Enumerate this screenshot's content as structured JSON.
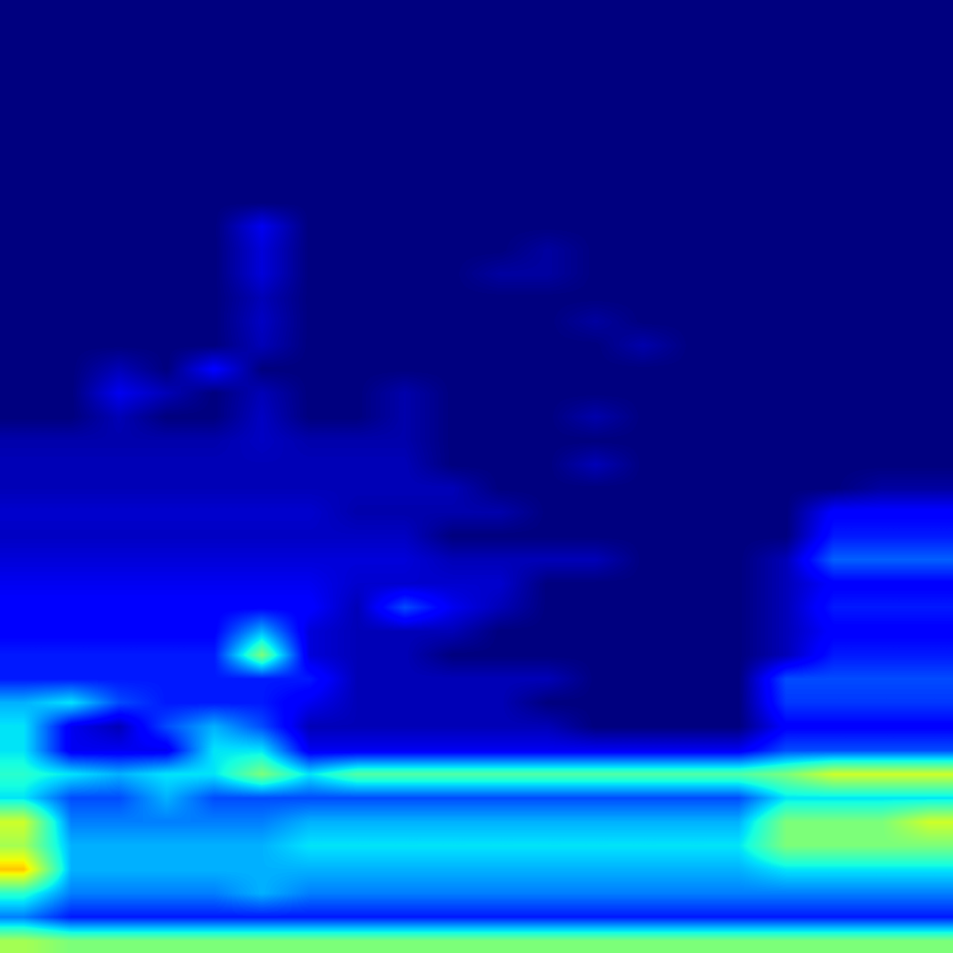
{
  "chart_data": {
    "type": "heatmap",
    "color": "jet",
    "tick_labels": false,
    "grid": false,
    "color_range": [
      0,
      1
    ],
    "cells": [
      [
        0,
        0,
        0,
        0,
        0,
        0,
        0,
        0,
        0,
        0,
        0,
        0,
        0,
        0,
        0,
        0,
        0,
        0,
        0,
        0
      ],
      [
        0,
        0,
        0,
        0,
        0,
        0,
        0,
        0,
        0,
        0,
        0,
        0,
        0,
        0,
        0,
        0,
        0,
        0,
        0,
        0
      ],
      [
        0,
        0,
        0,
        0,
        0,
        0,
        0,
        0,
        0,
        0,
        0,
        0,
        0,
        0,
        0,
        0,
        0,
        0,
        0,
        0
      ],
      [
        0,
        0,
        0,
        0,
        0,
        0,
        0,
        0,
        0,
        0,
        0,
        0,
        0,
        0,
        0,
        0,
        0,
        0,
        0,
        0
      ],
      [
        0,
        0,
        0,
        0,
        0,
        0,
        0,
        0,
        0,
        0,
        0,
        0,
        0,
        0,
        0,
        0,
        0,
        0,
        0,
        0
      ],
      [
        0,
        0,
        0,
        0,
        0,
        0,
        0,
        0,
        0,
        0,
        0,
        0,
        0,
        0,
        0,
        0,
        0,
        0,
        0,
        0
      ],
      [
        0,
        0,
        0,
        0,
        0,
        0,
        0,
        0,
        0,
        0,
        0,
        0,
        0,
        0,
        0,
        0,
        0,
        0,
        0,
        0
      ],
      [
        0,
        0,
        0,
        0,
        0,
        0,
        0,
        0,
        0,
        0,
        0,
        0,
        0,
        0,
        0,
        0,
        0,
        0,
        0,
        0
      ],
      [
        0,
        0,
        0,
        0,
        0,
        0,
        0,
        0,
        0,
        0,
        0,
        0,
        0,
        0,
        0,
        0,
        0,
        0,
        0,
        0
      ],
      [
        0,
        0,
        0,
        0,
        0,
        0.1,
        0,
        0,
        0,
        0,
        0,
        0,
        0,
        0,
        0,
        0,
        0,
        0,
        0,
        0
      ],
      [
        0,
        0,
        0,
        0,
        0,
        0.08,
        0,
        0,
        0,
        0,
        0,
        0.03,
        0,
        0,
        0,
        0,
        0,
        0,
        0,
        0
      ],
      [
        0,
        0,
        0,
        0,
        0,
        0.08,
        0,
        0,
        0,
        0,
        0.03,
        0.03,
        0,
        0,
        0,
        0,
        0,
        0,
        0,
        0
      ],
      [
        0,
        0,
        0,
        0,
        0,
        0.05,
        0,
        0,
        0,
        0,
        0,
        0,
        0,
        0,
        0,
        0,
        0,
        0,
        0,
        0
      ],
      [
        0,
        0,
        0,
        0,
        0,
        0.06,
        0,
        0,
        0,
        0,
        0,
        0,
        0.03,
        0,
        0,
        0,
        0,
        0,
        0,
        0
      ],
      [
        0,
        0,
        0,
        0,
        0,
        0.05,
        0,
        0,
        0,
        0,
        0,
        0,
        0,
        0.04,
        0,
        0,
        0,
        0,
        0,
        0
      ],
      [
        0,
        0,
        0.05,
        0,
        0.12,
        0,
        0,
        0,
        0,
        0,
        0,
        0,
        0,
        0,
        0,
        0,
        0,
        0,
        0,
        0
      ],
      [
        0,
        0,
        0.1,
        0.05,
        0,
        0.05,
        0,
        0,
        0.04,
        0,
        0,
        0,
        0,
        0,
        0,
        0,
        0,
        0,
        0,
        0
      ],
      [
        0,
        0,
        0.05,
        0,
        0,
        0.06,
        0,
        0,
        0.04,
        0,
        0,
        0,
        0.04,
        0,
        0,
        0,
        0,
        0,
        0,
        0
      ],
      [
        0.04,
        0.04,
        0.04,
        0.04,
        0.04,
        0.06,
        0.04,
        0.04,
        0.04,
        0,
        0,
        0,
        0,
        0,
        0,
        0,
        0,
        0,
        0,
        0
      ],
      [
        0.05,
        0.05,
        0.05,
        0.05,
        0.05,
        0.05,
        0.05,
        0.05,
        0.05,
        0,
        0,
        0,
        0.05,
        0,
        0,
        0,
        0,
        0,
        0,
        0
      ],
      [
        0.05,
        0.05,
        0.05,
        0.05,
        0.05,
        0.05,
        0.05,
        0.05,
        0.05,
        0.05,
        0,
        0,
        0,
        0,
        0,
        0,
        0,
        0,
        0.03,
        0.03
      ],
      [
        0.07,
        0.07,
        0.07,
        0.07,
        0.07,
        0.07,
        0.07,
        0.04,
        0.04,
        0.04,
        0.04,
        0,
        0,
        0,
        0,
        0,
        0,
        0.12,
        0.12,
        0.12
      ],
      [
        0.06,
        0.06,
        0.06,
        0.06,
        0.06,
        0.06,
        0.06,
        0.06,
        0.06,
        0,
        0,
        0,
        0,
        0,
        0,
        0,
        0,
        0.15,
        0.15,
        0.15
      ],
      [
        0.08,
        0.08,
        0.08,
        0.08,
        0.08,
        0.08,
        0.08,
        0.08,
        0.08,
        0.05,
        0.05,
        0.05,
        0.05,
        0,
        0,
        0,
        0.05,
        0.22,
        0.22,
        0.22
      ],
      [
        0.1,
        0.1,
        0.1,
        0.1,
        0.1,
        0.1,
        0.1,
        0.07,
        0.07,
        0.07,
        0.07,
        0,
        0,
        0,
        0,
        0,
        0.05,
        0.12,
        0.12,
        0.12
      ],
      [
        0.12,
        0.12,
        0.12,
        0.12,
        0.12,
        0.12,
        0.12,
        0.05,
        0.2,
        0.1,
        0.05,
        0,
        0,
        0,
        0,
        0,
        0.05,
        0.15,
        0.15,
        0.15
      ],
      [
        0.12,
        0.12,
        0.12,
        0.12,
        0.12,
        0.3,
        0.08,
        0.05,
        0.05,
        0.05,
        0,
        0,
        0,
        0,
        0,
        0,
        0.05,
        0.12,
        0.12,
        0.12
      ],
      [
        0.15,
        0.15,
        0.15,
        0.15,
        0.15,
        0.5,
        0.08,
        0.05,
        0.05,
        0,
        0,
        0,
        0,
        0,
        0,
        0,
        0.05,
        0.15,
        0.15,
        0.15
      ],
      [
        0.15,
        0.15,
        0.15,
        0.15,
        0.15,
        0.15,
        0.15,
        0.05,
        0.05,
        0.05,
        0.05,
        0.05,
        0,
        0,
        0,
        0,
        0.2,
        0.2,
        0.2,
        0.2
      ],
      [
        0.3,
        0.35,
        0.2,
        0.15,
        0.15,
        0.15,
        0.1,
        0.05,
        0.05,
        0.05,
        0.05,
        0,
        0,
        0,
        0,
        0,
        0.18,
        0.18,
        0.18,
        0.18
      ],
      [
        0.35,
        0.1,
        0.05,
        0.2,
        0.3,
        0.2,
        0.05,
        0.05,
        0.05,
        0.05,
        0.05,
        0.05,
        0,
        0,
        0,
        0,
        0.12,
        0.12,
        0.12,
        0.12
      ],
      [
        0.35,
        0.1,
        0.1,
        0.1,
        0.35,
        0.35,
        0.1,
        0.1,
        0.1,
        0.1,
        0.1,
        0.1,
        0.1,
        0.1,
        0.1,
        0.1,
        0.2,
        0.2,
        0.2,
        0.2
      ],
      [
        0.4,
        0.35,
        0.3,
        0.35,
        0.35,
        0.5,
        0.35,
        0.45,
        0.45,
        0.45,
        0.45,
        0.45,
        0.45,
        0.45,
        0.45,
        0.45,
        0.5,
        0.6,
        0.6,
        0.6
      ],
      [
        0.35,
        0.2,
        0.2,
        0.3,
        0.2,
        0.2,
        0.2,
        0.2,
        0.2,
        0.2,
        0.2,
        0.2,
        0.2,
        0.2,
        0.2,
        0.2,
        0.35,
        0.35,
        0.35,
        0.35
      ],
      [
        0.6,
        0.25,
        0.25,
        0.25,
        0.25,
        0.25,
        0.3,
        0.3,
        0.3,
        0.3,
        0.3,
        0.3,
        0.3,
        0.3,
        0.3,
        0.3,
        0.5,
        0.5,
        0.5,
        0.6
      ],
      [
        0.55,
        0.3,
        0.3,
        0.3,
        0.3,
        0.3,
        0.35,
        0.35,
        0.35,
        0.35,
        0.35,
        0.35,
        0.35,
        0.35,
        0.35,
        0.35,
        0.5,
        0.5,
        0.5,
        0.5
      ],
      [
        0.7,
        0.3,
        0.3,
        0.3,
        0.3,
        0.3,
        0.3,
        0.3,
        0.3,
        0.3,
        0.3,
        0.3,
        0.3,
        0.3,
        0.3,
        0.3,
        0.35,
        0.35,
        0.35,
        0.35
      ],
      [
        0.4,
        0.25,
        0.25,
        0.25,
        0.25,
        0.3,
        0.25,
        0.25,
        0.25,
        0.25,
        0.25,
        0.25,
        0.25,
        0.25,
        0.25,
        0.25,
        0.25,
        0.25,
        0.25,
        0.25
      ],
      [
        0.25,
        0.15,
        0.15,
        0.15,
        0.15,
        0.15,
        0.15,
        0.15,
        0.15,
        0.15,
        0.15,
        0.15,
        0.15,
        0.15,
        0.15,
        0.15,
        0.15,
        0.15,
        0.15,
        0.15
      ],
      [
        0.55,
        0.5,
        0.5,
        0.5,
        0.5,
        0.5,
        0.5,
        0.5,
        0.5,
        0.5,
        0.5,
        0.5,
        0.5,
        0.5,
        0.5,
        0.5,
        0.5,
        0.5,
        0.5,
        0.5
      ]
    ]
  }
}
